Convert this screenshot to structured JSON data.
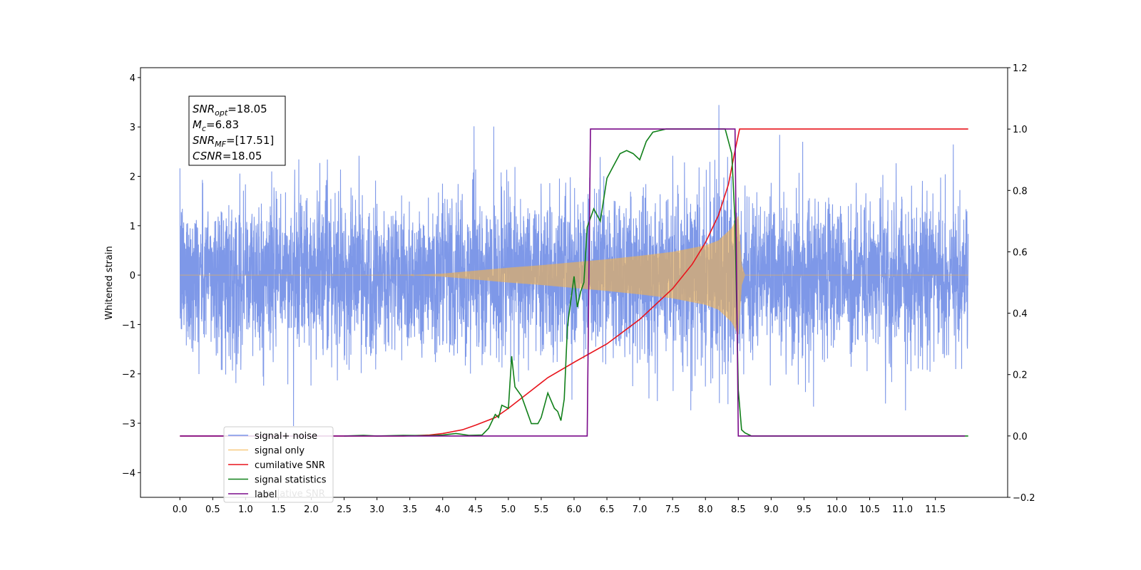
{
  "chart_data": {
    "type": "line",
    "title": "",
    "xlabel": "",
    "ylabel": "Whitened strain",
    "xlim": [
      -0.6,
      12.6
    ],
    "ylim": [
      -4.5,
      4.2
    ],
    "y2lim": [
      -0.2,
      1.2
    ],
    "x_ticks": [
      "0.0",
      "0.5",
      "1.0",
      "1.5",
      "2.0",
      "2.5",
      "3.0",
      "3.5",
      "4.0",
      "4.5",
      "5.0",
      "5.5",
      "6.0",
      "6.5",
      "7.0",
      "7.5",
      "8.0",
      "8.5",
      "9.0",
      "9.5",
      "10.0",
      "10.5",
      "11.0",
      "11.5"
    ],
    "y_ticks": [
      "4",
      "3",
      "2",
      "1",
      "0",
      "−1",
      "−2",
      "−3",
      "−4"
    ],
    "y2_ticks": [
      "1.2",
      "1.0",
      "0.8",
      "0.6",
      "0.4",
      "0.2",
      "0.0",
      "−0.2"
    ],
    "grid": false,
    "legend_position": "lower-left",
    "annotation": {
      "lines": [
        {
          "sym": "SNR",
          "sub": "opt",
          "value": "=18.05"
        },
        {
          "sym": "M",
          "sub": "c",
          "value": "=6.83"
        },
        {
          "sym": "SNR",
          "sub": "MF",
          "value": "=[17.51]"
        },
        {
          "sym": "CSNR",
          "sub": "",
          "value": "=18.05"
        }
      ]
    },
    "series": [
      {
        "name": "signal+ noise",
        "color": "#7b96e8",
        "axis": "left",
        "noise_sigma": 0.95,
        "noise_range": [
          -4.1,
          3.8
        ],
        "x_range": [
          0.0,
          12.0
        ]
      },
      {
        "name": "signal only",
        "color": "#f5b34a",
        "axis": "left",
        "envelope": {
          "x": [
            0.0,
            3.5,
            4.0,
            4.5,
            5.0,
            5.5,
            6.0,
            6.5,
            7.0,
            7.5,
            8.0,
            8.2,
            8.4,
            8.5,
            8.55,
            8.6,
            12.0
          ],
          "amp": [
            0.0,
            0.0,
            0.03,
            0.09,
            0.15,
            0.2,
            0.26,
            0.32,
            0.39,
            0.47,
            0.6,
            0.7,
            0.95,
            1.2,
            0.2,
            0.0,
            0.0
          ]
        }
      },
      {
        "name": "cumilative SNR",
        "color": "#e8141c",
        "axis": "right",
        "points": [
          [
            0.0,
            0.0
          ],
          [
            3.4,
            0.0
          ],
          [
            3.8,
            0.003
          ],
          [
            4.0,
            0.008
          ],
          [
            4.3,
            0.02
          ],
          [
            4.5,
            0.035
          ],
          [
            4.8,
            0.06
          ],
          [
            5.0,
            0.09
          ],
          [
            5.3,
            0.14
          ],
          [
            5.6,
            0.19
          ],
          [
            6.0,
            0.24
          ],
          [
            6.5,
            0.3
          ],
          [
            7.0,
            0.38
          ],
          [
            7.5,
            0.48
          ],
          [
            7.8,
            0.56
          ],
          [
            8.0,
            0.63
          ],
          [
            8.2,
            0.72
          ],
          [
            8.35,
            0.82
          ],
          [
            8.45,
            0.93
          ],
          [
            8.52,
            1.0
          ],
          [
            12.0,
            1.0
          ]
        ]
      },
      {
        "name": "signal statistics",
        "color": "#11801a",
        "axis": "right",
        "points": [
          [
            2.5,
            0.0
          ],
          [
            2.8,
            0.002
          ],
          [
            3.0,
            0.0
          ],
          [
            3.4,
            0.002
          ],
          [
            3.8,
            0.001
          ],
          [
            4.0,
            0.003
          ],
          [
            4.2,
            0.008
          ],
          [
            4.3,
            0.005
          ],
          [
            4.4,
            0.002
          ],
          [
            4.6,
            0.003
          ],
          [
            4.7,
            0.025
          ],
          [
            4.8,
            0.07
          ],
          [
            4.85,
            0.06
          ],
          [
            4.9,
            0.1
          ],
          [
            5.0,
            0.09
          ],
          [
            5.05,
            0.26
          ],
          [
            5.1,
            0.16
          ],
          [
            5.2,
            0.13
          ],
          [
            5.3,
            0.07
          ],
          [
            5.35,
            0.04
          ],
          [
            5.45,
            0.04
          ],
          [
            5.5,
            0.06
          ],
          [
            5.6,
            0.14
          ],
          [
            5.7,
            0.09
          ],
          [
            5.75,
            0.08
          ],
          [
            5.8,
            0.05
          ],
          [
            5.85,
            0.12
          ],
          [
            5.9,
            0.36
          ],
          [
            6.0,
            0.52
          ],
          [
            6.05,
            0.42
          ],
          [
            6.1,
            0.47
          ],
          [
            6.15,
            0.5
          ],
          [
            6.2,
            0.68
          ],
          [
            6.3,
            0.74
          ],
          [
            6.4,
            0.7
          ],
          [
            6.5,
            0.84
          ],
          [
            6.6,
            0.88
          ],
          [
            6.7,
            0.92
          ],
          [
            6.8,
            0.93
          ],
          [
            6.9,
            0.92
          ],
          [
            7.0,
            0.9
          ],
          [
            7.1,
            0.96
          ],
          [
            7.2,
            0.99
          ],
          [
            7.4,
            1.0
          ],
          [
            8.3,
            1.0
          ],
          [
            8.4,
            0.92
          ],
          [
            8.45,
            0.7
          ],
          [
            8.5,
            0.15
          ],
          [
            8.55,
            0.02
          ],
          [
            8.6,
            0.01
          ],
          [
            8.7,
            0.0
          ],
          [
            12.0,
            0.0
          ]
        ]
      },
      {
        "name": "label",
        "color": "#7a0a8a",
        "axis": "right",
        "points": [
          [
            0.0,
            0.0
          ],
          [
            6.2,
            0.0
          ],
          [
            6.25,
            1.0
          ],
          [
            8.45,
            1.0
          ],
          [
            8.5,
            0.0
          ],
          [
            11.95,
            0.0
          ]
        ]
      }
    ],
    "legend_hidden_text": "cumilative SNR"
  }
}
